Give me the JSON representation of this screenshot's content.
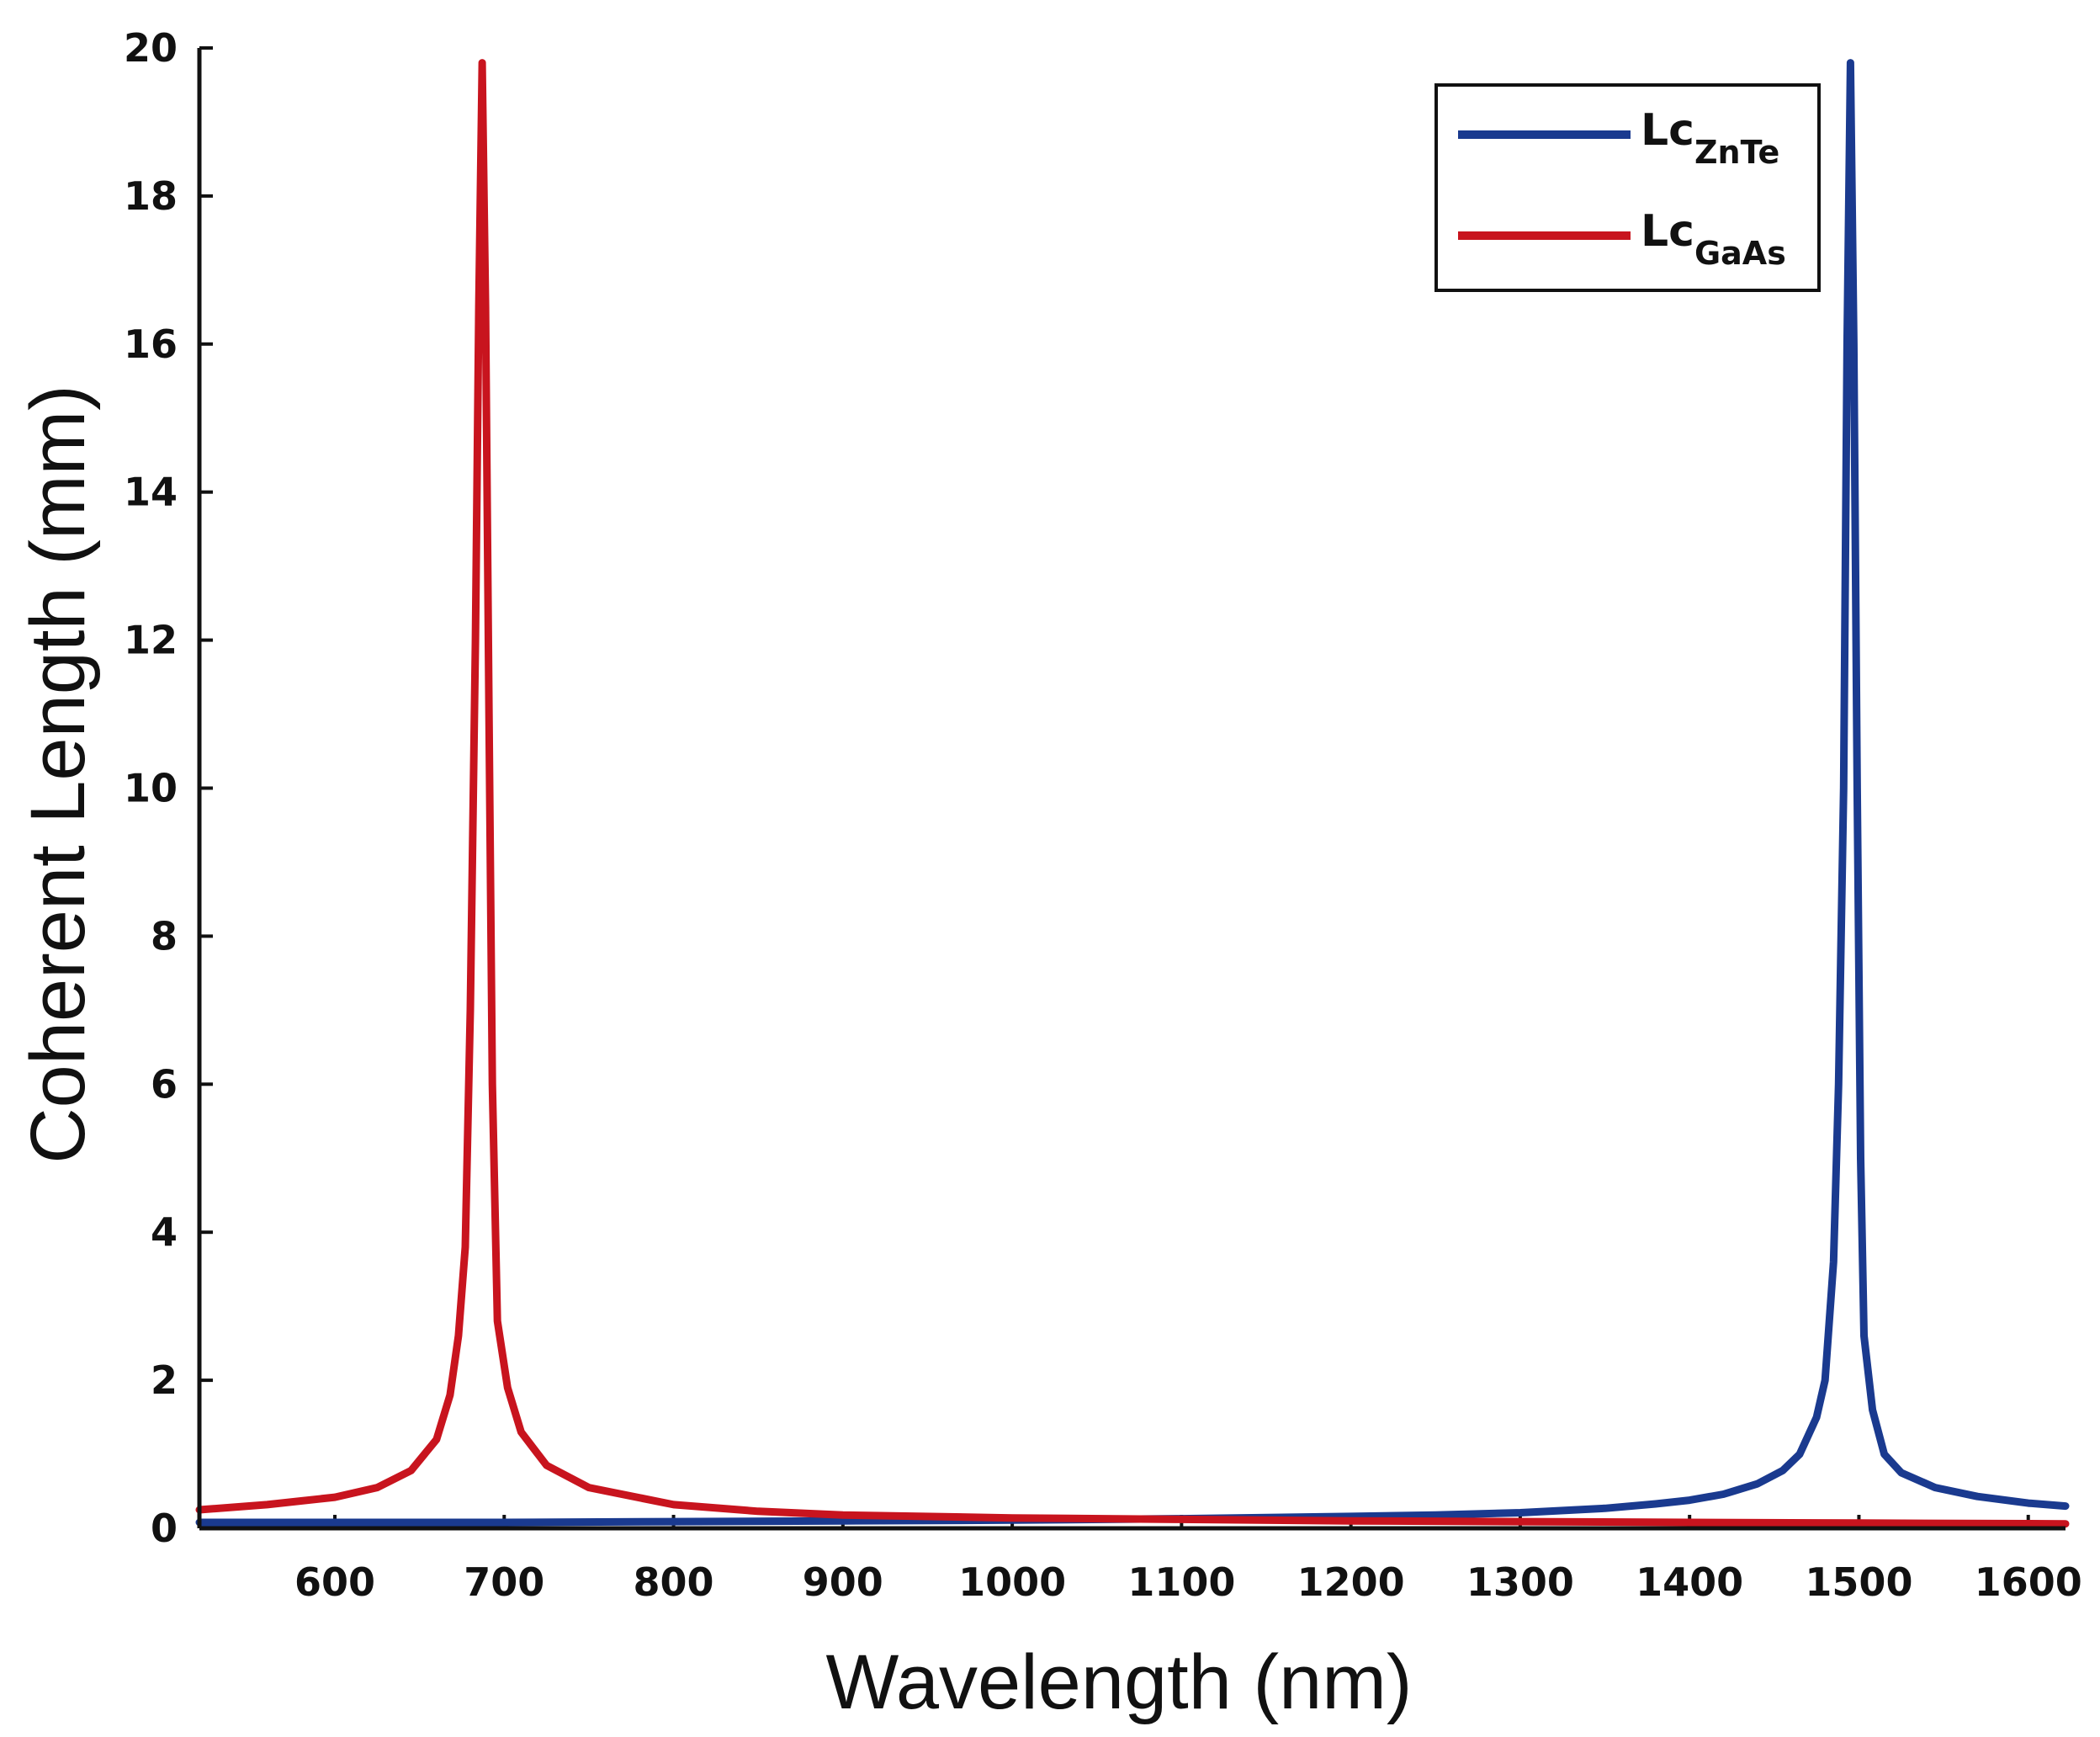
{
  "chart_data": {
    "type": "line",
    "title": "",
    "xlabel": "Wavelength (nm)",
    "ylabel": "Coherent Length (mm)",
    "xlim": [
      520,
      1622
    ],
    "ylim": [
      0,
      20
    ],
    "xticks": [
      600,
      700,
      800,
      900,
      1000,
      1100,
      1200,
      1300,
      1400,
      1500,
      1600
    ],
    "yticks": [
      0,
      2,
      4,
      6,
      8,
      10,
      12,
      14,
      16,
      18,
      20
    ],
    "legend_position": "top-right",
    "series": [
      {
        "name": "LcZnTe",
        "label_main": "Lc",
        "label_sub": "ZnTe",
        "color": "#1a3a8f",
        "points": [
          [
            520,
            0.08
          ],
          [
            600,
            0.08
          ],
          [
            700,
            0.08
          ],
          [
            800,
            0.09
          ],
          [
            900,
            0.1
          ],
          [
            1000,
            0.11
          ],
          [
            1100,
            0.13
          ],
          [
            1200,
            0.16
          ],
          [
            1250,
            0.18
          ],
          [
            1300,
            0.21
          ],
          [
            1350,
            0.27
          ],
          [
            1380,
            0.33
          ],
          [
            1400,
            0.38
          ],
          [
            1420,
            0.46
          ],
          [
            1440,
            0.6
          ],
          [
            1455,
            0.78
          ],
          [
            1465,
            1.0
          ],
          [
            1475,
            1.5
          ],
          [
            1480,
            2.0
          ],
          [
            1485,
            3.6
          ],
          [
            1488,
            6.0
          ],
          [
            1491,
            10.0
          ],
          [
            1493,
            16.0
          ],
          [
            1495,
            19.8
          ],
          [
            1497,
            16.0
          ],
          [
            1499,
            10.0
          ],
          [
            1501,
            5.0
          ],
          [
            1503,
            2.6
          ],
          [
            1508,
            1.6
          ],
          [
            1515,
            1.0
          ],
          [
            1525,
            0.75
          ],
          [
            1545,
            0.55
          ],
          [
            1570,
            0.43
          ],
          [
            1600,
            0.34
          ],
          [
            1622,
            0.3
          ]
        ]
      },
      {
        "name": "LcGaAs",
        "label_main": "Lc",
        "label_sub": "GaAs",
        "color": "#c8141e",
        "points": [
          [
            520,
            0.25
          ],
          [
            560,
            0.32
          ],
          [
            600,
            0.42
          ],
          [
            625,
            0.55
          ],
          [
            645,
            0.78
          ],
          [
            660,
            1.2
          ],
          [
            668,
            1.8
          ],
          [
            673,
            2.6
          ],
          [
            677,
            3.8
          ],
          [
            680,
            7.0
          ],
          [
            683,
            12.0
          ],
          [
            685,
            16.5
          ],
          [
            687,
            19.8
          ],
          [
            689,
            16.5
          ],
          [
            691,
            11.0
          ],
          [
            693,
            6.0
          ],
          [
            696,
            2.8
          ],
          [
            702,
            1.9
          ],
          [
            710,
            1.3
          ],
          [
            725,
            0.85
          ],
          [
            750,
            0.55
          ],
          [
            800,
            0.32
          ],
          [
            850,
            0.23
          ],
          [
            900,
            0.18
          ],
          [
            1000,
            0.14
          ],
          [
            1100,
            0.12
          ],
          [
            1200,
            0.1
          ],
          [
            1300,
            0.09
          ],
          [
            1400,
            0.08
          ],
          [
            1500,
            0.07
          ],
          [
            1622,
            0.06
          ]
        ]
      }
    ]
  }
}
